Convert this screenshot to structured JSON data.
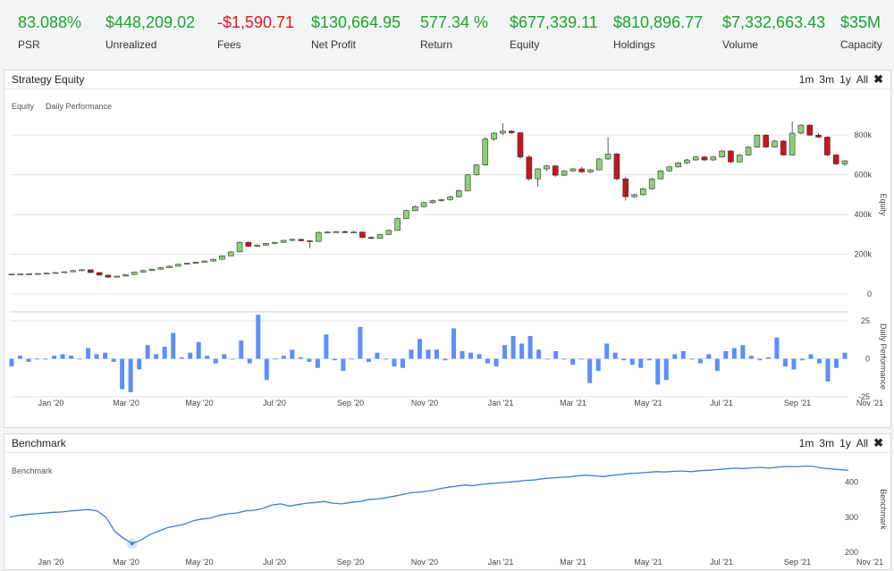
{
  "stats": [
    {
      "value": "83.088%",
      "label": "PSR",
      "tone": "pos"
    },
    {
      "value": "$448,209.02",
      "label": "Unrealized",
      "tone": "pos"
    },
    {
      "value": "-$1,590.71",
      "label": "Fees",
      "tone": "neg"
    },
    {
      "value": "$130,664.95",
      "label": "Net Profit",
      "tone": "pos"
    },
    {
      "value": "577.34 %",
      "label": "Return",
      "tone": "pos"
    },
    {
      "value": "$677,339.11",
      "label": "Equity",
      "tone": "pos"
    },
    {
      "value": "$810,896.77",
      "label": "Holdings",
      "tone": "pos"
    },
    {
      "value": "$7,332,663.43",
      "label": "Volume",
      "tone": "pos"
    },
    {
      "value": "$35M",
      "label": "Capacity",
      "tone": "pos"
    }
  ],
  "equity_panel": {
    "title": "Strategy Equity",
    "ranges": [
      "1m",
      "3m",
      "1y",
      "All"
    ],
    "close_glyph": "✖",
    "legend": [
      "Equity",
      "Daily Performance"
    ]
  },
  "benchmark_panel": {
    "title": "Benchmark",
    "ranges": [
      "1m",
      "3m",
      "1y",
      "All"
    ],
    "close_glyph": "✖",
    "legend": [
      "Benchmark"
    ]
  },
  "colors": {
    "up": "#8fcf7a",
    "down": "#c4161b",
    "bar": "#5b8ff9",
    "line": "#3b7ddd",
    "positive_text": "#1aa52b",
    "negative_text": "#e2171e"
  },
  "chart_data": [
    {
      "type": "candlestick",
      "title": "",
      "ylabel": "Equity",
      "ylim": [
        0,
        900000
      ],
      "yticks": [
        "0",
        "200k",
        "400k",
        "600k",
        "800k"
      ],
      "ytick_values": [
        0,
        200000,
        400000,
        600000,
        800000
      ],
      "xticks": [
        "Jan '20",
        "Mar '20",
        "May '20",
        "Jul '20",
        "Sep '20",
        "Nov '20",
        "Jan '21",
        "Mar '21",
        "May '21",
        "Jul '21",
        "Sep '21",
        "Nov '21"
      ],
      "series": [
        {
          "values": [
            [
              100000,
              100000,
              98000,
              101000
            ],
            [
              100000,
              101000,
              99000,
              102000
            ],
            [
              101000,
              102000,
              100000,
              103000
            ],
            [
              102000,
              103000,
              101000,
              104000
            ],
            [
              103000,
              105000,
              102000,
              106000
            ],
            [
              105000,
              108000,
              104000,
              109000
            ],
            [
              108000,
              112000,
              107000,
              113000
            ],
            [
              112000,
              118000,
              110000,
              120000
            ],
            [
              118000,
              122000,
              115000,
              125000
            ],
            [
              122000,
              108000,
              105000,
              124000
            ],
            [
              108000,
              95000,
              92000,
              110000
            ],
            [
              95000,
              85000,
              80000,
              97000
            ],
            [
              85000,
              90000,
              83000,
              92000
            ],
            [
              90000,
              98000,
              88000,
              100000
            ],
            [
              98000,
              110000,
              96000,
              112000
            ],
            [
              110000,
              118000,
              108000,
              120000
            ],
            [
              118000,
              125000,
              116000,
              128000
            ],
            [
              125000,
              132000,
              123000,
              135000
            ],
            [
              132000,
              140000,
              130000,
              143000
            ],
            [
              140000,
              150000,
              138000,
              152000
            ],
            [
              150000,
              155000,
              148000,
              158000
            ],
            [
              155000,
              160000,
              152000,
              162000
            ],
            [
              160000,
              166000,
              157000,
              168000
            ],
            [
              166000,
              175000,
              163000,
              178000
            ],
            [
              175000,
              192000,
              172000,
              195000
            ],
            [
              192000,
              212000,
              190000,
              215000
            ],
            [
              212000,
              260000,
              210000,
              265000
            ],
            [
              260000,
              240000,
              236000,
              265000
            ],
            [
              240000,
              245000,
              238000,
              250000
            ],
            [
              245000,
              255000,
              243000,
              258000
            ],
            [
              255000,
              260000,
              252000,
              263000
            ],
            [
              260000,
              270000,
              257000,
              272000
            ],
            [
              270000,
              275000,
              265000,
              280000
            ],
            [
              275000,
              268000,
              264000,
              278000
            ],
            [
              268000,
              265000,
              230000,
              270000
            ],
            [
              265000,
              310000,
              262000,
              315000
            ],
            [
              310000,
              312000,
              305000,
              316000
            ],
            [
              312000,
              314000,
              308000,
              318000
            ],
            [
              314000,
              310000,
              306000,
              320000
            ],
            [
              310000,
              312000,
              305000,
              318000
            ],
            [
              312000,
              285000,
              280000,
              315000
            ],
            [
              285000,
              280000,
              276000,
              290000
            ],
            [
              280000,
              300000,
              278000,
              302000
            ],
            [
              300000,
              320000,
              296000,
              325000
            ],
            [
              320000,
              380000,
              318000,
              385000
            ],
            [
              380000,
              420000,
              378000,
              425000
            ],
            [
              420000,
              440000,
              416000,
              445000
            ],
            [
              440000,
              460000,
              436000,
              465000
            ],
            [
              460000,
              470000,
              455000,
              475000
            ],
            [
              470000,
              475000,
              465000,
              480000
            ],
            [
              475000,
              490000,
              470000,
              495000
            ],
            [
              490000,
              520000,
              486000,
              525000
            ],
            [
              520000,
              600000,
              516000,
              605000
            ],
            [
              600000,
              650000,
              596000,
              655000
            ],
            [
              650000,
              780000,
              645000,
              790000
            ],
            [
              780000,
              810000,
              770000,
              815000
            ],
            [
              810000,
              820000,
              800000,
              860000
            ],
            [
              820000,
              812000,
              805000,
              825000
            ],
            [
              812000,
              690000,
              680000,
              815000
            ],
            [
              690000,
              580000,
              570000,
              700000
            ],
            [
              580000,
              630000,
              540000,
              635000
            ],
            [
              630000,
              645000,
              620000,
              650000
            ],
            [
              645000,
              598000,
              590000,
              650000
            ],
            [
              598000,
              620000,
              594000,
              625000
            ],
            [
              620000,
              630000,
              615000,
              635000
            ],
            [
              630000,
              615000,
              610000,
              640000
            ],
            [
              615000,
              625000,
              610000,
              630000
            ],
            [
              625000,
              680000,
              622000,
              684000
            ],
            [
              680000,
              705000,
              675000,
              790000
            ],
            [
              705000,
              580000,
              570000,
              710000
            ],
            [
              580000,
              490000,
              470000,
              590000
            ],
            [
              490000,
              500000,
              485000,
              505000
            ],
            [
              500000,
              530000,
              496000,
              535000
            ],
            [
              530000,
              580000,
              526000,
              585000
            ],
            [
              580000,
              620000,
              576000,
              625000
            ],
            [
              620000,
              640000,
              615000,
              645000
            ],
            [
              640000,
              660000,
              636000,
              665000
            ],
            [
              660000,
              675000,
              655000,
              680000
            ],
            [
              675000,
              690000,
              670000,
              695000
            ],
            [
              690000,
              675000,
              668000,
              695000
            ],
            [
              675000,
              690000,
              670000,
              695000
            ],
            [
              690000,
              720000,
              686000,
              725000
            ],
            [
              720000,
              665000,
              660000,
              725000
            ],
            [
              665000,
              700000,
              662000,
              705000
            ],
            [
              700000,
              740000,
              696000,
              745000
            ],
            [
              740000,
              800000,
              736000,
              805000
            ],
            [
              800000,
              740000,
              736000,
              805000
            ],
            [
              740000,
              770000,
              736000,
              775000
            ],
            [
              770000,
              700000,
              696000,
              775000
            ],
            [
              700000,
              810000,
              696000,
              870000
            ],
            [
              810000,
              850000,
              805000,
              855000
            ],
            [
              850000,
              800000,
              795000,
              855000
            ],
            [
              800000,
              790000,
              785000,
              810000
            ],
            [
              790000,
              700000,
              694000,
              795000
            ],
            [
              700000,
              655000,
              650000,
              705000
            ],
            [
              655000,
              670000,
              645000,
              675000
            ]
          ]
        }
      ]
    },
    {
      "type": "bar",
      "title": "",
      "ylabel": "Daily Performance",
      "ylim": [
        -25,
        25
      ],
      "yticks": [
        "25",
        "0",
        "-25"
      ],
      "ytick_values": [
        25,
        0,
        -25
      ],
      "xticks": [
        "Jan '20",
        "Mar '20",
        "May '20",
        "Jul '20",
        "Sep '20",
        "Nov '20",
        "Jan '21",
        "Mar '21",
        "May '21",
        "Jul '21",
        "Sep '21",
        "Nov '21"
      ],
      "series": [
        {
          "values": [
            -5,
            2,
            -2,
            0,
            0,
            2,
            3,
            2,
            0,
            7,
            3,
            4,
            -2,
            -20,
            -22,
            -7,
            9,
            3,
            8,
            17,
            1,
            4,
            11,
            2,
            -3,
            3,
            0,
            12,
            -3,
            29,
            -14,
            0,
            2,
            6,
            1,
            -2,
            -6,
            16,
            -1,
            -8,
            0,
            21,
            -2,
            4,
            0,
            -5,
            -6,
            6,
            13,
            6,
            6,
            -1,
            20,
            5,
            4,
            3,
            -3,
            -5,
            9,
            15,
            10,
            15,
            6,
            0,
            5,
            0,
            -4,
            0,
            -16,
            -8,
            10,
            4,
            -1,
            -4,
            -6,
            -1,
            -17,
            -14,
            3,
            5,
            0,
            -3,
            3,
            -8,
            5,
            7,
            9,
            2,
            -1,
            1,
            14,
            -5,
            -7,
            -1,
            3,
            -3,
            -15,
            -6,
            4
          ]
        }
      ]
    },
    {
      "type": "line",
      "title": "",
      "ylabel": "Benchmark",
      "ylim": [
        200,
        450
      ],
      "yticks": [
        "200",
        "300",
        "400"
      ],
      "ytick_values": [
        200,
        300,
        400
      ],
      "xticks": [
        "Jan '20",
        "Mar '20",
        "May '20",
        "Jul '20",
        "Sep '20",
        "Nov '20",
        "Jan '21",
        "Mar '21",
        "May '21",
        "Jul '21",
        "Sep '21",
        "Nov '21"
      ],
      "series": [
        {
          "values": [
            300,
            305,
            308,
            310,
            312,
            314,
            315,
            318,
            320,
            322,
            318,
            300,
            260,
            240,
            225,
            235,
            250,
            260,
            270,
            275,
            280,
            290,
            295,
            298,
            305,
            310,
            312,
            318,
            320,
            325,
            335,
            338,
            332,
            336,
            340,
            342,
            345,
            340,
            338,
            342,
            345,
            350,
            352,
            355,
            360,
            365,
            370,
            372,
            375,
            380,
            385,
            388,
            392,
            390,
            394,
            396,
            398,
            400,
            402,
            405,
            406,
            410,
            412,
            414,
            415,
            418,
            420,
            418,
            416,
            420,
            422,
            425,
            426,
            428,
            430,
            429,
            431,
            432,
            430,
            433,
            434,
            436,
            438,
            440,
            439,
            441,
            442,
            440,
            443,
            445,
            444,
            446,
            445,
            440,
            438,
            436,
            434
          ]
        }
      ]
    }
  ]
}
